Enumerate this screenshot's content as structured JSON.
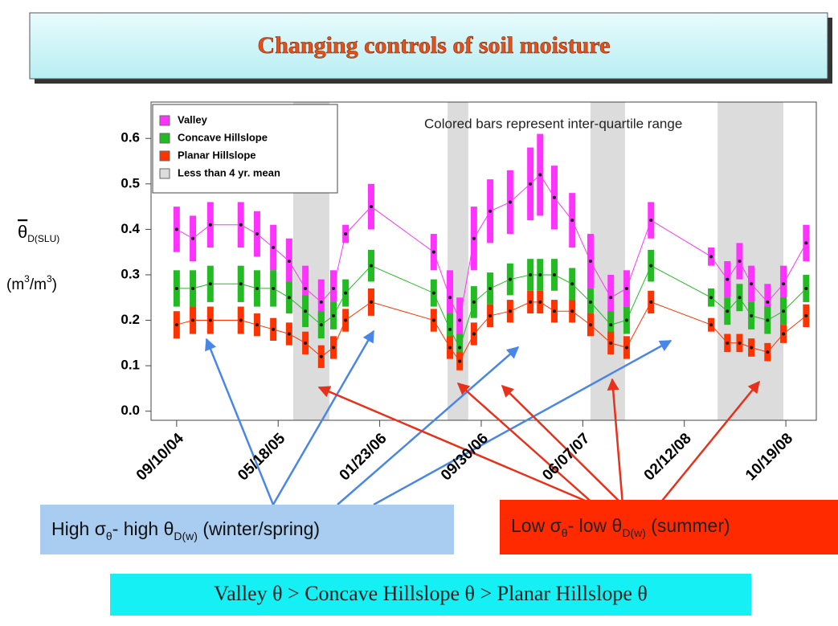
{
  "chart_data": {
    "type": "iqr-timeseries",
    "title": "Changing controls of soil moisture",
    "annotation": "Colored bars represent inter-quartile range",
    "ylabel_symbol": "θ",
    "ylabel_subscript": "D(SLU)",
    "yunits_parts": [
      "(m",
      "3",
      "/m",
      "3",
      ")"
    ],
    "x": [
      "09/10/04",
      "10/20/04",
      "12/02/04",
      "02/15/05",
      "03/27/05",
      "05/06/05",
      "06/14/05",
      "07/24/05",
      "09/01/05",
      "10/01/05",
      "10/31/05",
      "01/02/06",
      "06/05/06",
      "07/15/06",
      "08/08/06",
      "09/12/06",
      "10/22/06",
      "12/10/06",
      "01/29/07",
      "02/22/07",
      "03/29/07",
      "05/12/07",
      "06/26/07",
      "08/15/07",
      "09/23/07",
      "11/22/07",
      "04/18/08",
      "05/28/08",
      "06/27/08",
      "07/26/08",
      "09/04/08",
      "10/13/08",
      "12/08/08"
    ],
    "xlim": [
      "07/09/04",
      "01/02/09"
    ],
    "xticks": [
      "09/10/04",
      "05/18/05",
      "01/23/06",
      "09/30/06",
      "06/07/07",
      "02/12/08",
      "10/19/08"
    ],
    "ylim": [
      -0.02,
      0.68
    ],
    "yticks": [
      {
        "value": 0,
        "label": "0.0"
      },
      0.1,
      0.2,
      0.3,
      0.4,
      0.5,
      0.6
    ],
    "shade_label": "Less than 4 yr. mean",
    "shade_color": "#dcdcdc",
    "shaded": [
      [
        "06/24/05",
        "09/21/05"
      ],
      [
        "07/09/06",
        "08/29/06"
      ],
      [
        "06/26/07",
        "09/19/07"
      ],
      [
        "05/04/08",
        "10/13/08"
      ]
    ],
    "series": [
      {
        "name": "Valley",
        "color": "#ff33ff",
        "values": [
          0.4,
          0.38,
          0.41,
          0.41,
          0.39,
          0.36,
          0.33,
          0.27,
          0.24,
          0.27,
          0.39,
          0.45,
          0.35,
          0.25,
          0.2,
          0.38,
          0.44,
          0.46,
          0.5,
          0.52,
          0.47,
          0.42,
          0.33,
          0.25,
          0.27,
          0.42,
          0.34,
          0.29,
          0.33,
          0.28,
          0.24,
          0.28,
          0.37
        ],
        "errors": [
          0.05,
          0.05,
          0.05,
          0.05,
          0.05,
          0.05,
          0.05,
          0.05,
          0.05,
          0.04,
          0.02,
          0.05,
          0.04,
          0.06,
          0.05,
          0.07,
          0.07,
          0.07,
          0.08,
          0.09,
          0.07,
          0.06,
          0.06,
          0.05,
          0.04,
          0.04,
          0.02,
          0.04,
          0.04,
          0.04,
          0.04,
          0.04,
          0.04
        ]
      },
      {
        "name": "Concave Hillslope",
        "color": "#22bb22",
        "values": [
          0.27,
          0.27,
          0.28,
          0.28,
          0.27,
          0.27,
          0.25,
          0.22,
          0.19,
          0.21,
          0.26,
          0.32,
          0.26,
          0.18,
          0.14,
          0.24,
          0.27,
          0.29,
          0.3,
          0.3,
          0.3,
          0.28,
          0.24,
          0.19,
          0.2,
          0.32,
          0.25,
          0.22,
          0.25,
          0.21,
          0.2,
          0.22,
          0.27
        ],
        "errors": [
          0.04,
          0.04,
          0.04,
          0.04,
          0.04,
          0.04,
          0.035,
          0.035,
          0.03,
          0.03,
          0.03,
          0.035,
          0.03,
          0.035,
          0.03,
          0.035,
          0.035,
          0.035,
          0.035,
          0.035,
          0.035,
          0.035,
          0.03,
          0.03,
          0.03,
          0.035,
          0.02,
          0.03,
          0.03,
          0.03,
          0.03,
          0.03,
          0.03
        ]
      },
      {
        "name": "Planar Hillslope",
        "color": "#ff3300",
        "values": [
          0.19,
          0.2,
          0.2,
          0.2,
          0.19,
          0.18,
          0.17,
          0.15,
          0.12,
          0.14,
          0.2,
          0.24,
          0.2,
          0.14,
          0.11,
          0.17,
          0.21,
          0.22,
          0.24,
          0.24,
          0.22,
          0.22,
          0.19,
          0.15,
          0.14,
          0.24,
          0.19,
          0.15,
          0.15,
          0.14,
          0.13,
          0.17,
          0.21
        ],
        "errors": [
          0.03,
          0.03,
          0.03,
          0.03,
          0.025,
          0.025,
          0.025,
          0.025,
          0.025,
          0.025,
          0.025,
          0.03,
          0.025,
          0.025,
          0.02,
          0.025,
          0.025,
          0.025,
          0.025,
          0.025,
          0.025,
          0.025,
          0.025,
          0.025,
          0.025,
          0.025,
          0.015,
          0.02,
          0.02,
          0.02,
          0.02,
          0.02,
          0.025
        ]
      }
    ],
    "callout_left_parts": [
      "High σ",
      "θ",
      "- high θ",
      "D(w)",
      " (winter/spring)"
    ],
    "callout_right_parts": [
      "Low σ",
      "θ",
      "- low θ",
      "D(w)",
      " (summer)"
    ],
    "conclusion": "Valley θ > Concave Hillslope θ > Planar Hillslope θ"
  }
}
